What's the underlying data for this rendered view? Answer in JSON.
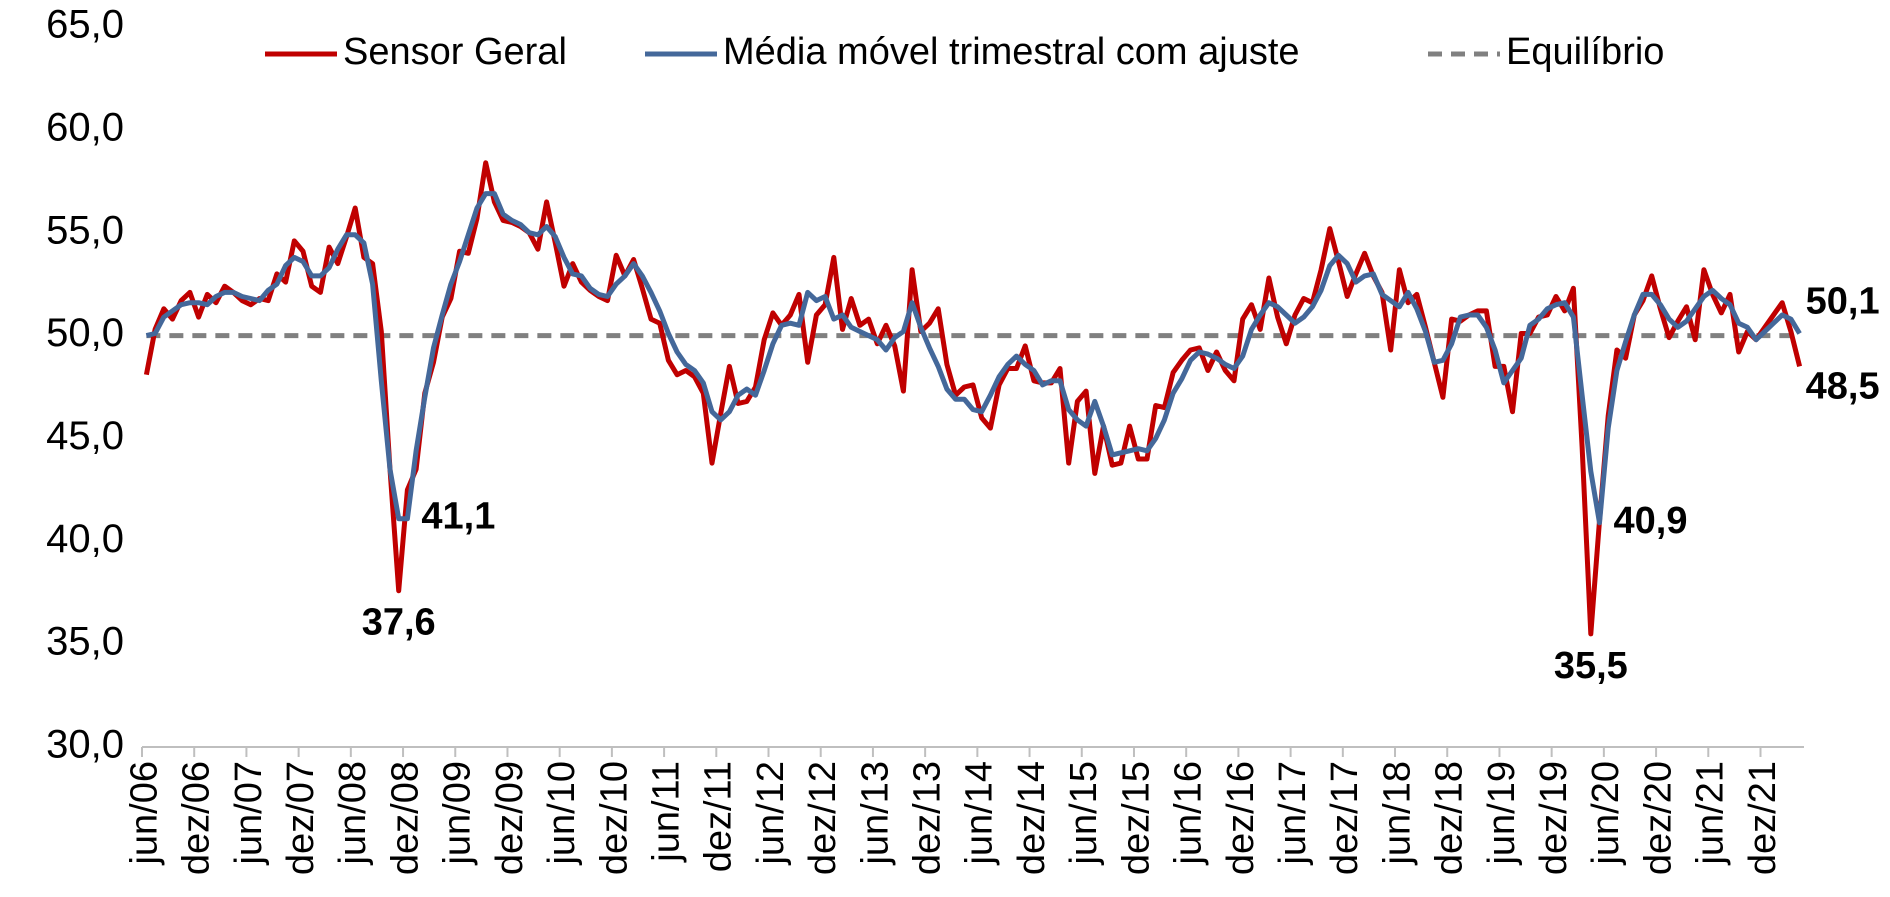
{
  "chart_data": {
    "type": "line",
    "categories": [
      "jun/06",
      null,
      null,
      null,
      null,
      null,
      "dez/06",
      null,
      null,
      null,
      null,
      null,
      "jun/07",
      null,
      null,
      null,
      null,
      null,
      "dez/07",
      null,
      null,
      null,
      null,
      null,
      "jun/08",
      null,
      null,
      null,
      null,
      null,
      "dez/08",
      null,
      null,
      null,
      null,
      null,
      "jun/09",
      null,
      null,
      null,
      null,
      null,
      "dez/09",
      null,
      null,
      null,
      null,
      null,
      "jun/10",
      null,
      null,
      null,
      null,
      null,
      "dez/10",
      null,
      null,
      null,
      null,
      null,
      "jun/11",
      null,
      null,
      null,
      null,
      null,
      "dez/11",
      null,
      null,
      null,
      null,
      null,
      "jun/12",
      null,
      null,
      null,
      null,
      null,
      "dez/12",
      null,
      null,
      null,
      null,
      null,
      "jun/13",
      null,
      null,
      null,
      null,
      null,
      "dez/13",
      null,
      null,
      null,
      null,
      null,
      "jun/14",
      null,
      null,
      null,
      null,
      null,
      "dez/14",
      null,
      null,
      null,
      null,
      null,
      "jun/15",
      null,
      null,
      null,
      null,
      null,
      "dez/15",
      null,
      null,
      null,
      null,
      null,
      "jun/16",
      null,
      null,
      null,
      null,
      null,
      "dez/16",
      null,
      null,
      null,
      null,
      null,
      "jun/17",
      null,
      null,
      null,
      null,
      null,
      "dez/17",
      null,
      null,
      null,
      null,
      null,
      "jun/18",
      null,
      null,
      null,
      null,
      null,
      "dez/18",
      null,
      null,
      null,
      null,
      null,
      "jun/19",
      null,
      null,
      null,
      null,
      null,
      "dez/19",
      null,
      null,
      null,
      null,
      null,
      "jun/20",
      null,
      null,
      null,
      null,
      null,
      "dez/20",
      null,
      null,
      null,
      null,
      null,
      "jun/21",
      null,
      null,
      null,
      null,
      null,
      "dez/21",
      null,
      null,
      null,
      null
    ],
    "series": [
      {
        "name": "Sensor Geral",
        "color": "#c00000",
        "values": [
          48.1,
          50.3,
          51.3,
          50.8,
          51.7,
          52.1,
          50.9,
          52.0,
          51.6,
          52.4,
          52.1,
          51.7,
          51.5,
          51.8,
          51.7,
          53.0,
          52.6,
          54.6,
          54.1,
          52.4,
          52.1,
          54.3,
          53.5,
          54.8,
          56.2,
          53.8,
          53.5,
          50.2,
          43.5,
          37.6,
          42.5,
          43.5,
          47.2,
          48.7,
          50.9,
          51.8,
          54.1,
          54.0,
          55.7,
          58.4,
          56.5,
          55.6,
          55.5,
          55.3,
          55.0,
          54.2,
          56.5,
          54.5,
          52.4,
          53.5,
          52.6,
          52.2,
          51.9,
          51.7,
          53.9,
          52.9,
          53.7,
          52.3,
          50.8,
          50.6,
          48.8,
          48.1,
          48.3,
          48.0,
          47.2,
          43.8,
          46.2,
          48.5,
          46.7,
          46.8,
          47.5,
          49.8,
          51.1,
          50.5,
          51.0,
          52.0,
          48.7,
          51.0,
          51.5,
          53.8,
          50.3,
          51.8,
          50.5,
          50.8,
          49.6,
          50.5,
          49.5,
          47.3,
          53.2,
          50.2,
          50.6,
          51.3,
          48.6,
          47.1,
          47.5,
          47.6,
          46.0,
          45.5,
          47.6,
          48.4,
          48.4,
          49.5,
          47.8,
          47.7,
          47.7,
          48.4,
          43.8,
          46.8,
          47.3,
          43.3,
          45.6,
          43.7,
          43.8,
          45.6,
          44.0,
          44.0,
          46.6,
          46.5,
          48.2,
          48.8,
          49.3,
          49.4,
          48.3,
          49.2,
          48.3,
          47.8,
          50.8,
          51.5,
          50.3,
          52.8,
          50.9,
          49.6,
          51.0,
          51.8,
          51.6,
          53.2,
          55.2,
          53.6,
          51.9,
          53.0,
          54.0,
          52.9,
          52.1,
          49.3,
          53.2,
          51.6,
          52.0,
          50.4,
          48.7,
          47.0,
          50.8,
          50.7,
          51.0,
          51.2,
          51.2,
          48.5,
          48.5,
          46.3,
          50.1,
          50.1,
          50.9,
          51.0,
          51.9,
          51.2,
          52.3,
          44.6,
          35.5,
          41.0,
          46.1,
          49.3,
          48.9,
          51.0,
          51.7,
          52.9,
          51.3,
          49.9,
          50.7,
          51.4,
          49.8,
          53.2,
          52.0,
          51.1,
          52.0,
          49.2,
          50.2,
          49.8,
          50.4,
          51.0,
          51.6,
          50.2,
          48.5
        ],
        "value_labels": [
          null,
          null,
          null,
          null,
          null,
          null,
          null,
          null,
          null,
          null,
          null,
          null,
          null,
          null,
          null,
          null,
          null,
          null,
          null,
          null,
          null,
          null,
          null,
          null,
          null,
          null,
          null,
          null,
          null,
          "37,6",
          null,
          null,
          null,
          null,
          null,
          null,
          null,
          null,
          null,
          null,
          null,
          null,
          null,
          null,
          null,
          null,
          null,
          null,
          null,
          null,
          null,
          null,
          null,
          null,
          null,
          null,
          null,
          null,
          null,
          null,
          null,
          null,
          null,
          null,
          null,
          null,
          null,
          null,
          null,
          null,
          null,
          null,
          null,
          null,
          null,
          null,
          null,
          null,
          null,
          null,
          null,
          null,
          null,
          null,
          null,
          null,
          null,
          null,
          null,
          null,
          null,
          null,
          null,
          null,
          null,
          null,
          null,
          null,
          null,
          null,
          null,
          null,
          null,
          null,
          null,
          null,
          null,
          null,
          null,
          null,
          null,
          null,
          null,
          null,
          null,
          null,
          null,
          null,
          null,
          null,
          null,
          null,
          null,
          null,
          null,
          null,
          null,
          null,
          null,
          null,
          null,
          null,
          null,
          null,
          null,
          null,
          null,
          null,
          null,
          null,
          null,
          null,
          null,
          null,
          null,
          null,
          null,
          null,
          null,
          null,
          null,
          null,
          null,
          null,
          null,
          null,
          null,
          null,
          null,
          null,
          null,
          null,
          null,
          null,
          null,
          null,
          "35,5",
          null,
          null,
          null,
          null,
          null,
          null,
          null,
          null,
          null,
          null,
          null,
          null,
          null,
          null,
          null,
          null,
          null,
          null,
          null,
          null,
          null,
          null,
          null,
          "48,5"
        ]
      },
      {
        "name": "Média móvel trimestral com ajuste",
        "color": "#44689a",
        "values": [
          50.0,
          50.1,
          50.9,
          51.2,
          51.5,
          51.6,
          51.6,
          51.5,
          51.9,
          52.1,
          52.1,
          51.9,
          51.8,
          51.7,
          52.2,
          52.5,
          53.4,
          53.8,
          53.6,
          52.9,
          52.9,
          53.3,
          54.2,
          54.9,
          54.9,
          54.5,
          52.5,
          47.8,
          43.5,
          41.1,
          41.1,
          44.4,
          47.0,
          49.4,
          51.0,
          52.5,
          53.6,
          54.9,
          56.2,
          56.9,
          56.9,
          55.9,
          55.6,
          55.4,
          55.0,
          54.9,
          55.3,
          54.8,
          53.8,
          53.0,
          52.9,
          52.3,
          52.0,
          51.9,
          52.5,
          52.9,
          53.5,
          52.9,
          52.1,
          51.2,
          50.1,
          49.2,
          48.6,
          48.3,
          47.7,
          46.3,
          45.9,
          46.3,
          47.1,
          47.4,
          47.1,
          48.3,
          49.6,
          50.5,
          50.6,
          50.5,
          52.1,
          51.7,
          51.9,
          50.8,
          51.0,
          50.4,
          50.2,
          50.0,
          49.8,
          49.3,
          49.9,
          50.2,
          51.6,
          50.4,
          49.4,
          48.5,
          47.4,
          46.9,
          46.9,
          46.4,
          46.3,
          47.1,
          48.0,
          48.6,
          49.0,
          48.6,
          48.3,
          47.6,
          47.8,
          47.8,
          46.4,
          45.9,
          45.6,
          46.8,
          45.6,
          44.2,
          44.3,
          44.4,
          44.5,
          44.4,
          45.0,
          45.9,
          47.2,
          47.9,
          48.8,
          49.2,
          49.1,
          48.9,
          48.6,
          48.4,
          49.0,
          50.3,
          51.0,
          51.6,
          51.4,
          51.0,
          50.6,
          50.9,
          51.4,
          52.2,
          53.4,
          53.9,
          53.5,
          52.6,
          52.9,
          53.0,
          52.0,
          51.7,
          51.4,
          52.1,
          51.3,
          50.2,
          48.7,
          48.8,
          49.6,
          50.9,
          51.0,
          51.0,
          50.4,
          49.3,
          47.7,
          48.3,
          48.9,
          50.5,
          50.8,
          51.3,
          51.5,
          51.6,
          50.9,
          47.1,
          43.4,
          40.9,
          45.5,
          48.3,
          49.7,
          51.0,
          52.0,
          52.0,
          51.5,
          50.8,
          50.4,
          50.7,
          51.3,
          51.9,
          52.2,
          51.8,
          51.5,
          50.6,
          50.4,
          49.8,
          50.2,
          50.6,
          51.0,
          50.8,
          50.1
        ],
        "value_labels": [
          null,
          null,
          null,
          null,
          null,
          null,
          null,
          null,
          null,
          null,
          null,
          null,
          null,
          null,
          null,
          null,
          null,
          null,
          null,
          null,
          null,
          null,
          null,
          null,
          null,
          null,
          null,
          null,
          null,
          null,
          "41,1",
          null,
          null,
          null,
          null,
          null,
          null,
          null,
          null,
          null,
          null,
          null,
          null,
          null,
          null,
          null,
          null,
          null,
          null,
          null,
          null,
          null,
          null,
          null,
          null,
          null,
          null,
          null,
          null,
          null,
          null,
          null,
          null,
          null,
          null,
          null,
          null,
          null,
          null,
          null,
          null,
          null,
          null,
          null,
          null,
          null,
          null,
          null,
          null,
          null,
          null,
          null,
          null,
          null,
          null,
          null,
          null,
          null,
          null,
          null,
          null,
          null,
          null,
          null,
          null,
          null,
          null,
          null,
          null,
          null,
          null,
          null,
          null,
          null,
          null,
          null,
          null,
          null,
          null,
          null,
          null,
          null,
          null,
          null,
          null,
          null,
          null,
          null,
          null,
          null,
          null,
          null,
          null,
          null,
          null,
          null,
          null,
          null,
          null,
          null,
          null,
          null,
          null,
          null,
          null,
          null,
          null,
          null,
          null,
          null,
          null,
          null,
          null,
          null,
          null,
          null,
          null,
          null,
          null,
          null,
          null,
          null,
          null,
          null,
          null,
          null,
          null,
          null,
          null,
          null,
          null,
          null,
          null,
          null,
          null,
          null,
          null,
          "40,9",
          null,
          null,
          null,
          null,
          null,
          null,
          null,
          null,
          null,
          null,
          null,
          null,
          null,
          null,
          null,
          null,
          null,
          null,
          null,
          null,
          null,
          null,
          "50,1"
        ]
      }
    ],
    "reference_lines": [
      {
        "name": "Equilíbrio",
        "value": 50,
        "color": "#808080",
        "dashed": true
      }
    ],
    "ylim": [
      30,
      65
    ],
    "yticks": [
      {
        "value": 30,
        "label": "30,0"
      },
      {
        "value": 35,
        "label": "35,0"
      },
      {
        "value": 40,
        "label": "40,0"
      },
      {
        "value": 45,
        "label": "45,0"
      },
      {
        "value": 50,
        "label": "50,0"
      },
      {
        "value": 55,
        "label": "55,0"
      },
      {
        "value": 60,
        "label": "60,0"
      },
      {
        "value": 65,
        "label": "65,0"
      }
    ],
    "grid": false,
    "legend": "top"
  }
}
